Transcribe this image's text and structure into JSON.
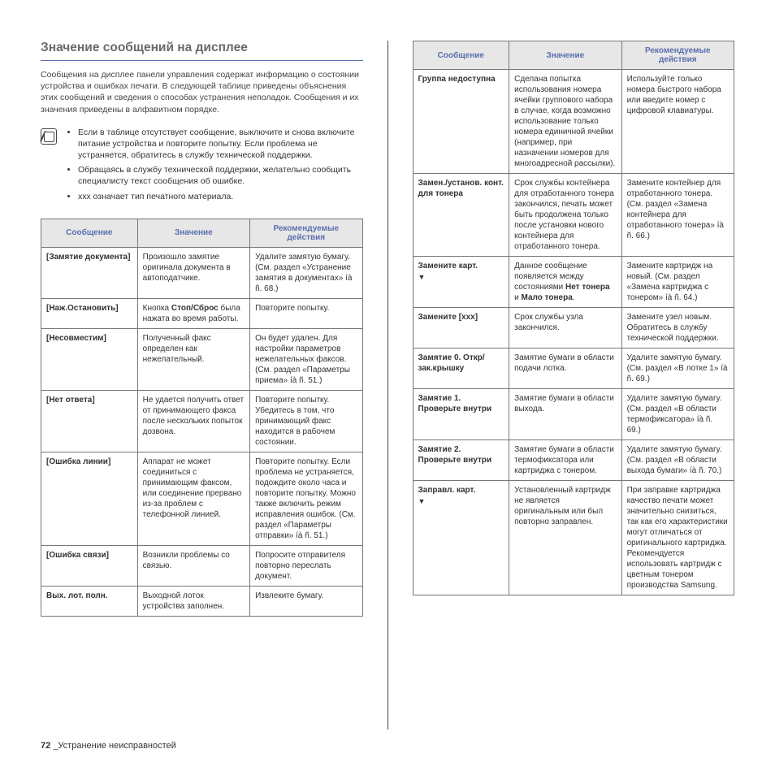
{
  "title": "Значение сообщений на дисплее",
  "intro": "Сообщения на дисплее панели управления содержат информацию о состоянии устройства и ошибках печати. В следующей таблице приведены объяснения этих сообщений и сведения о способах устранения неполадок. Сообщения и их значения приведены в алфавитном порядке.",
  "notes": [
    "Если в таблице отсутствует сообщение, выключите и снова включите питание устройства и повторите попытку. Если проблема не устраняется, обратитесь в службу технической поддержки.",
    "Обращаясь в службу технической поддержки, желательно сообщить специалисту текст сообщения об ошибке.",
    "xxx означает тип печатного материала."
  ],
  "headers": {
    "msg": "Сообщение",
    "meaning": "Значение",
    "action": "Рекомендуемые действия"
  },
  "tableLeft": [
    {
      "msg": "[Замятие документа]",
      "meaning": "Произошло замятие оригинала документа в автоподатчике.",
      "action": "Удалите замятую бумагу. (См. раздел «Устранение замятия в документах» íà ñ. 68.)"
    },
    {
      "msg": "[Наж.Остановить]",
      "meaning_html": "Кнопка <b>Стоп/Сброс</b> была нажата во время работы.",
      "action": "Повторите попытку."
    },
    {
      "msg": "[Несовместим]",
      "meaning": "Полученный факс определен как нежелательный.",
      "action": "Он будет удален. Для настройки параметров нежелательных факсов. (См. раздел «Параметры приема» íà ñ. 51.)"
    },
    {
      "msg": "[Нет ответа]",
      "meaning": "Не удается получить ответ от принимающего факса после нескольких попыток дозвона.",
      "action": "Повторите попытку. Убедитесь в том, что принимающий факс находится в рабочем состоянии."
    },
    {
      "msg": "[Ошибка линии]",
      "meaning": "Аппарат не может соединиться с принимающим факсом, или соединение прервано из-за проблем с телефонной линией.",
      "action": "Повторите попытку. Если проблема не устраняется, подождите около часа и повторите попытку. Можно также включить режим исправления ошибок. (См. раздел «Параметры отправки» íà ñ. 51.)"
    },
    {
      "msg": "[Ошибка связи]",
      "meaning": "Возникли проблемы со связью.",
      "action": "Попросите отправителя повторно переслать документ."
    },
    {
      "msg": "Вых. лот. полн.",
      "meaning": "Выходной лоток устройства заполнен.",
      "action": "Извлеките бумагу."
    }
  ],
  "tableRight": [
    {
      "msg": "Группа недоступна",
      "meaning": "Сделана попытка использования номера ячейки группового набора в случае, когда возможно использование только номера единичной ячейки (например, при назначении номеров для многоадресной рассылки).",
      "action": "Используйте только номера быстрого набора или введите номер с цифровой клавиатуры."
    },
    {
      "msg": "Замен./установ. конт. для тонера",
      "meaning": "Срок службы контейнера для отработанного тонера закончился, печать может быть продолжена только после установки нового контейнера для отработанного тонера.",
      "action": "Замените контейнер для отработанного тонера. (См. раздел «Замена контейнера для отработанного тонера» íà ñ. 66.)"
    },
    {
      "msg": "Замените карт.",
      "tri": true,
      "meaning_html": "Данное сообщение появляется между состояниями <b>Нет тонера</b> и <b>Мало тонера</b>.",
      "action": "Замените картридж на новый. (См. раздел «Замена картриджа с тонером» íà ñ. 64.)"
    },
    {
      "msg": "Замените [xxx]",
      "meaning": "Срок службы узла закончился.",
      "action": "Замените узел новым. Обратитесь в службу технической поддержки."
    },
    {
      "msg": "Замятие 0. Откр/зак.крышку",
      "meaning": "Замятие бумаги в области подачи лотка.",
      "action": "Удалите замятую бумагу. (См. раздел «В лотке 1» íà ñ. 69.)"
    },
    {
      "msg": "Замятие 1. Проверьте внутри",
      "meaning": "Замятие бумаги в области выхода.",
      "action": "Удалите замятую бумагу. (См. раздел «В области термофиксатора» íà ñ. 69.)"
    },
    {
      "msg": "Замятие 2. Проверьте внутри",
      "meaning": "Замятие бумаги в области термофиксатора или картриджа с тонером.",
      "action": "Удалите замятую бумагу. (См. раздел «В области выхода бумаги» íà ñ. 70.)"
    },
    {
      "msg": "Заправл. карт.",
      "tri": true,
      "meaning": "Установленный картридж не является оригинальным или был повторно заправлен.",
      "action": "При заправке картриджа качество печати может значительно снизиться, так как его характеристики могут отличаться от оригинального картриджа. Рекомендуется использовать картридж с цветным тонером производства Samsung."
    }
  ],
  "footer": {
    "page": "72",
    "text": "_Устранение неисправностей"
  },
  "colors": {
    "heading": "#6a6a6a",
    "rule": "#5a6fae",
    "th_bg": "#e7e7e8",
    "th_fg": "#5a6fae",
    "border": "#777777",
    "text": "#333333"
  },
  "column_widths": {
    "msg": "30%",
    "meaning": "35%",
    "action": "35%"
  }
}
